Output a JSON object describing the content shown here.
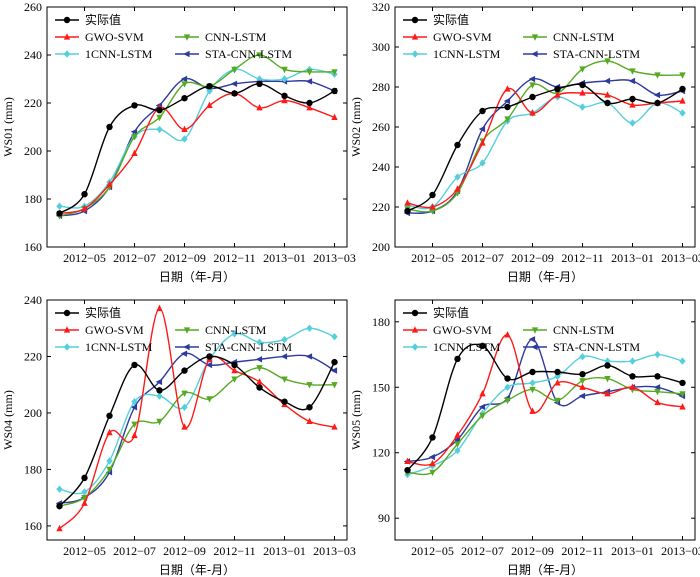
{
  "chart_data": [
    {
      "type": "line",
      "ylabel": "WS01 (mm)",
      "xlabel": "日期（年-月）",
      "ylim": [
        160,
        260
      ],
      "yticks": [
        160,
        180,
        200,
        220,
        240,
        260
      ],
      "xlim": [
        "2012-04",
        "2013-03"
      ],
      "xticks": [
        "2012-05",
        "2012-07",
        "2012-09",
        "2012-11",
        "2013-01",
        "2013-03"
      ],
      "x": [
        "2012-04",
        "2012-05",
        "2012-06",
        "2012-07",
        "2012-08",
        "2012-09",
        "2012-10",
        "2012-11",
        "2012-12",
        "2013-01",
        "2013-02",
        "2013-03"
      ],
      "series": [
        {
          "name": "实际值",
          "values": [
            174,
            182,
            210,
            219,
            217,
            222,
            227,
            224,
            228,
            223,
            220,
            225
          ]
        },
        {
          "name": "GWO-SVM",
          "values": [
            174,
            176,
            186,
            199,
            218,
            209,
            219,
            224,
            218,
            221,
            218,
            214
          ]
        },
        {
          "name": "CNN-LSTM",
          "values": [
            173,
            176,
            185,
            206,
            214,
            228,
            227,
            234,
            240,
            234,
            233,
            233
          ]
        },
        {
          "name": "1CNN-LSTM",
          "values": [
            177,
            177,
            187,
            206,
            209,
            205,
            225,
            234,
            230,
            230,
            234,
            232
          ]
        },
        {
          "name": "STA-CNN-LSTM",
          "values": [
            173,
            175,
            185,
            208,
            219,
            230,
            226,
            228,
            229,
            229,
            229,
            225
          ]
        }
      ],
      "legend": "top-left, two columns",
      "grid": false
    },
    {
      "type": "line",
      "ylabel": "WS02 (mm)",
      "xlabel": "日期（年-月）",
      "ylim": [
        200,
        320
      ],
      "yticks": [
        200,
        220,
        240,
        260,
        280,
        300,
        320
      ],
      "xlim": [
        "2012-04",
        "2013-03"
      ],
      "xticks": [
        "2012-05",
        "2012-07",
        "2012-09",
        "2012-11",
        "2013-01",
        "2013-03"
      ],
      "x": [
        "2012-04",
        "2012-05",
        "2012-06",
        "2012-07",
        "2012-08",
        "2012-09",
        "2012-10",
        "2012-11",
        "2012-12",
        "2013-01",
        "2013-02",
        "2013-03"
      ],
      "series": [
        {
          "name": "实际值",
          "values": [
            218,
            226,
            251,
            268,
            270,
            275,
            279,
            281,
            272,
            274,
            272,
            279
          ]
        },
        {
          "name": "GWO-SVM",
          "values": [
            222,
            220,
            229,
            252,
            279,
            267,
            276,
            277,
            276,
            271,
            272,
            273
          ]
        },
        {
          "name": "CNN-LSTM",
          "values": [
            219,
            218,
            227,
            253,
            264,
            281,
            277,
            289,
            293,
            288,
            286,
            286
          ]
        },
        {
          "name": "1CNN-LSTM",
          "values": [
            221,
            220,
            235,
            242,
            263,
            267,
            275,
            270,
            272,
            262,
            272,
            267
          ]
        },
        {
          "name": "STA-CNN-LSTM",
          "values": [
            217,
            218,
            228,
            259,
            273,
            284,
            280,
            282,
            283,
            283,
            276,
            278
          ]
        }
      ],
      "legend": "top-left, two columns",
      "grid": false
    },
    {
      "type": "line",
      "ylabel": "WS04 (mm)",
      "xlabel": "日期（年-月）",
      "ylim": [
        155,
        240
      ],
      "yticks": [
        160,
        180,
        200,
        220,
        240
      ],
      "xlim": [
        "2012-04",
        "2013-03"
      ],
      "xticks": [
        "2012-05",
        "2012-07",
        "2012-09",
        "2012-11",
        "2013-01",
        "2013-03"
      ],
      "x": [
        "2012-04",
        "2012-05",
        "2012-06",
        "2012-07",
        "2012-08",
        "2012-09",
        "2012-10",
        "2012-11",
        "2012-12",
        "2013-01",
        "2013-02",
        "2013-03"
      ],
      "series": [
        {
          "name": "实际值",
          "values": [
            167,
            177,
            199,
            217,
            208,
            215,
            220,
            217,
            209,
            204,
            202,
            218
          ]
        },
        {
          "name": "GWO-SVM",
          "values": [
            159,
            168,
            193,
            192,
            237,
            195,
            219,
            215,
            211,
            203,
            197,
            195
          ]
        },
        {
          "name": "CNN-LSTM",
          "values": [
            167,
            170,
            180,
            196,
            197,
            207,
            205,
            212,
            216,
            212,
            210,
            210
          ]
        },
        {
          "name": "1CNN-LSTM",
          "values": [
            173,
            172,
            183,
            204,
            206,
            202,
            219,
            228,
            225,
            226,
            230,
            227
          ]
        },
        {
          "name": "STA-CNN-LSTM",
          "values": [
            168,
            170,
            179,
            202,
            211,
            221,
            217,
            218,
            219,
            220,
            220,
            215
          ]
        }
      ],
      "legend": "top-left, two columns",
      "grid": false
    },
    {
      "type": "line",
      "ylabel": "WS05 (mm)",
      "xlabel": "日期（年-月）",
      "ylim": [
        80,
        190
      ],
      "yticks": [
        90,
        120,
        150,
        180
      ],
      "xlim": [
        "2012-04",
        "2013-03"
      ],
      "xticks": [
        "2012-05",
        "2012-07",
        "2012-09",
        "2012-11",
        "2013-01",
        "2013-03"
      ],
      "x": [
        "2012-04",
        "2012-05",
        "2012-06",
        "2012-07",
        "2012-08",
        "2012-09",
        "2012-10",
        "2012-11",
        "2012-12",
        "2013-01",
        "2013-02",
        "2013-03"
      ],
      "series": [
        {
          "name": "实际值",
          "values": [
            112,
            127,
            163,
            169,
            154,
            157,
            157,
            156,
            160,
            155,
            155,
            152
          ]
        },
        {
          "name": "GWO-SVM",
          "values": [
            116,
            115,
            128,
            147,
            174,
            139,
            152,
            150,
            147,
            150,
            143,
            141
          ]
        },
        {
          "name": "CNN-LSTM",
          "values": [
            111,
            111,
            124,
            137,
            144,
            149,
            144,
            153,
            154,
            149,
            148,
            147
          ]
        },
        {
          "name": "1CNN-LSTM",
          "values": [
            110,
            114,
            121,
            138,
            150,
            152,
            155,
            164,
            162,
            162,
            165,
            162
          ]
        },
        {
          "name": "STA-CNN-LSTM",
          "values": [
            116,
            118,
            126,
            141,
            145,
            172,
            143,
            146,
            148,
            150,
            150,
            146
          ]
        }
      ],
      "legend": "top-left, two columns",
      "grid": false
    }
  ],
  "series_colors": [
    "#000000",
    "#ff1a1a",
    "#55aa22",
    "#55cfdd",
    "#2e3b9e"
  ],
  "series_markers": [
    "circle",
    "triangle-up",
    "triangle-down",
    "diamond",
    "triangle-left"
  ]
}
